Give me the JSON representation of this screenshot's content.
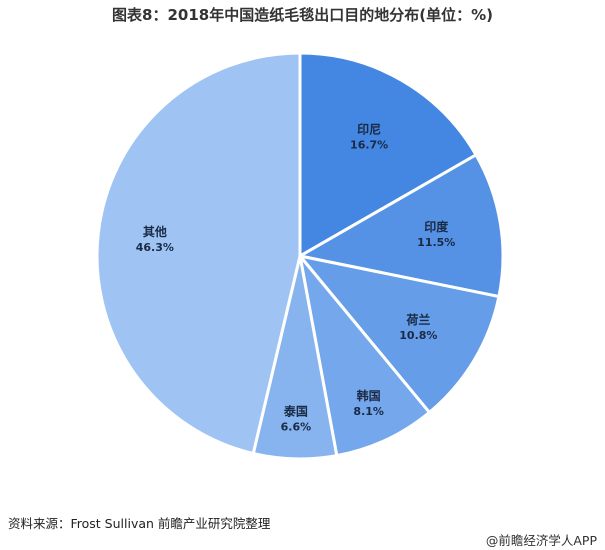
{
  "chart_data": {
    "type": "pie",
    "title": "图表8：2018年中国造纸毛毯出口目的地分布(单位：%)",
    "start_angle": "top",
    "direction": "clockwise",
    "slices": [
      {
        "label": "印尼",
        "value": 16.7,
        "display": "16.7%",
        "color": "#4387e3"
      },
      {
        "label": "印度",
        "value": 11.5,
        "display": "11.5%",
        "color": "#5592e6"
      },
      {
        "label": "荷兰",
        "value": 10.8,
        "display": "10.8%",
        "color": "#659de8"
      },
      {
        "label": "韩国",
        "value": 8.1,
        "display": "8.1%",
        "color": "#74a7eb"
      },
      {
        "label": "泰国",
        "value": 6.6,
        "display": "6.6%",
        "color": "#87b3ee"
      },
      {
        "label": "其他",
        "value": 46.3,
        "display": "46.3%",
        "color": "#9fc4f4"
      }
    ]
  },
  "source": "资料来源：Frost Sullivan 前瞻产业研究院整理",
  "brand": "@前瞻经济学人APP"
}
